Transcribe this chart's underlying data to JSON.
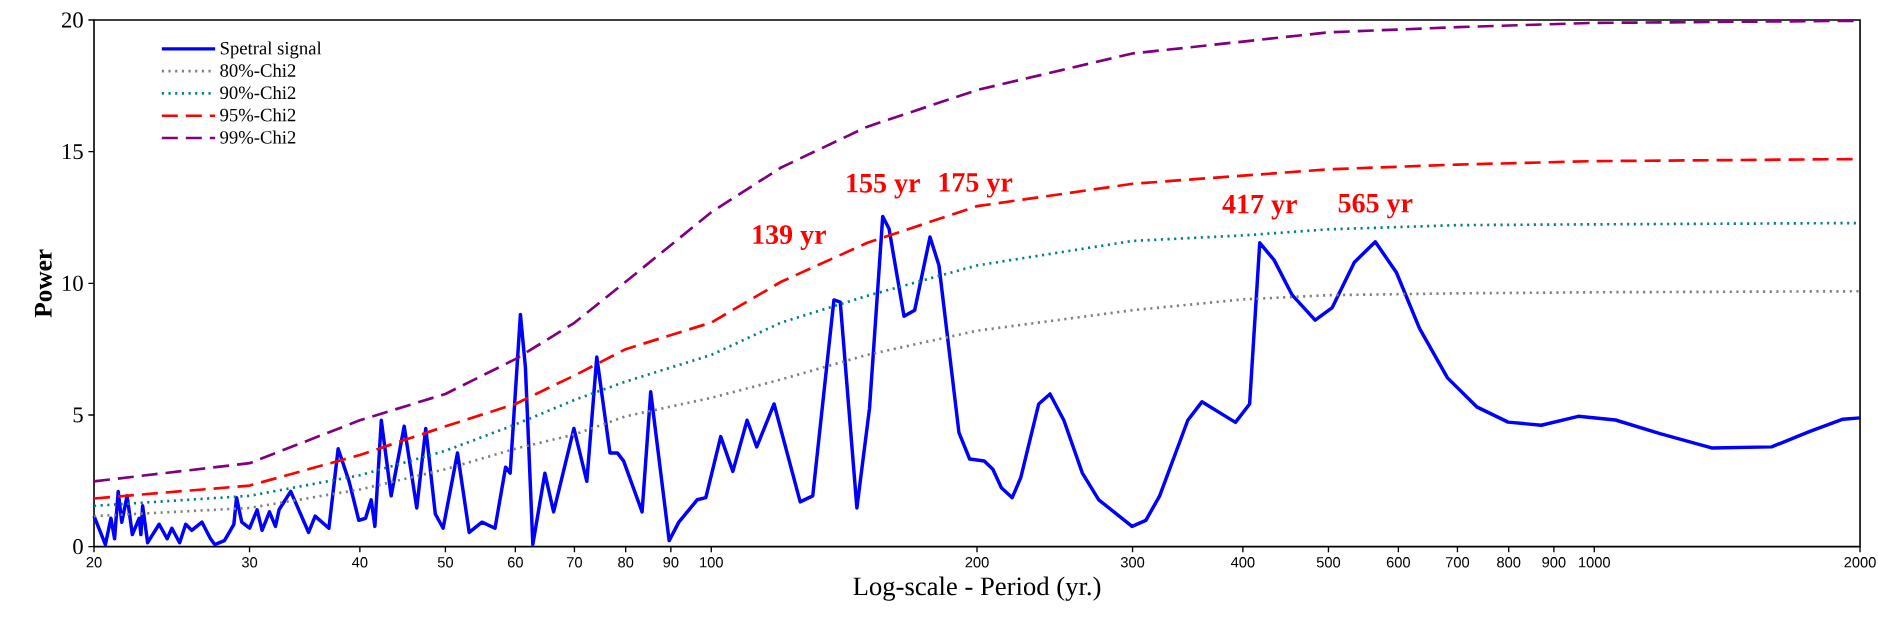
{
  "chart_data": {
    "type": "line",
    "xlabel": "Log-scale - Period (yr.)",
    "ylabel": "Power",
    "log": "x",
    "legend": "top left",
    "xlim": [
      20,
      2000
    ],
    "ylim": [
      0,
      20
    ],
    "xticks": [
      20,
      30,
      40,
      50,
      60,
      70,
      80,
      90,
      100,
      200,
      300,
      400,
      500,
      600,
      700,
      800,
      900,
      1000,
      2000
    ],
    "yticks": [
      0,
      5,
      10,
      15,
      20
    ],
    "series": [
      {
        "name": "Spetral signal",
        "color": "#0000ff",
        "line_style": "solid",
        "x": [
          20,
          20.3,
          20.6,
          20.9,
          21.1,
          21.3,
          21.5,
          21.8,
          22.1,
          22.5,
          22.6,
          22.7,
          23.0,
          23.3,
          23.7,
          24.2,
          24.5,
          25.0,
          25.4,
          25.8,
          26.5,
          27.1,
          27.4,
          28.1,
          28.8,
          29.0,
          29.4,
          30.0,
          30.6,
          31.0,
          31.6,
          32.1,
          32.4,
          33.4,
          35.0,
          35.6,
          36.9,
          37.8,
          38.9,
          39.9,
          40.6,
          41.2,
          41.6,
          42.3,
          43.4,
          44.9,
          46.4,
          47.5,
          48.7,
          49.7,
          51.6,
          53.2,
          55.0,
          56.9,
          58.5,
          59.2,
          60.8,
          61.6,
          62.8,
          64.8,
          66.3,
          69.9,
          72.3,
          74.2,
          76.8,
          78.3,
          79.6,
          83.5,
          85.4,
          89.6,
          91.9,
          96.4,
          98.6,
          102.5,
          105.8,
          109.8,
          112.6,
          117.8,
          126.1,
          130.3,
          137.7,
          140.0,
          146.2,
          151.1,
          156.4,
          159.0,
          165.3,
          170.0,
          176.9,
          181.1,
          190.8,
          196.2,
          203.8,
          208.4,
          213.1,
          219.2,
          224.2,
          234.9,
          241.9,
          250.8,
          263.2,
          274.7,
          299.6,
          310.6,
          322.0,
          346.5,
          359.5,
          392.4,
          407.1,
          418,
          434,
          455,
          483,
          505,
          535,
          565,
          597,
          634,
          682,
          736,
          799,
          871,
          959,
          1057,
          1187,
          1358,
          1588,
          1752,
          1913,
          2000
        ],
        "values": [
          1.16,
          0.62,
          0.08,
          1.08,
          0.3,
          2.1,
          0.93,
          1.93,
          0.46,
          1.08,
          0.46,
          1.55,
          0.15,
          0.46,
          0.85,
          0.3,
          0.7,
          0.15,
          0.85,
          0.62,
          0.93,
          0.3,
          0.08,
          0.23,
          0.85,
          1.86,
          0.93,
          0.7,
          1.4,
          0.62,
          1.32,
          0.77,
          1.4,
          2.1,
          0.54,
          1.16,
          0.7,
          3.72,
          2.48,
          1.0,
          1.08,
          1.78,
          0.77,
          4.8,
          1.93,
          4.57,
          1.47,
          4.49,
          1.24,
          0.7,
          3.56,
          0.54,
          0.93,
          0.7,
          3.02,
          2.79,
          8.82,
          6.81,
          0.08,
          2.79,
          1.32,
          4.49,
          2.48,
          7.2,
          3.56,
          3.56,
          3.25,
          1.32,
          5.88,
          0.23,
          0.93,
          1.78,
          1.86,
          4.18,
          2.86,
          4.8,
          3.79,
          5.42,
          1.7,
          1.93,
          9.37,
          9.29,
          1.47,
          5.26,
          12.54,
          12.07,
          8.75,
          8.98,
          11.76,
          10.68,
          4.33,
          3.33,
          3.25,
          2.94,
          2.24,
          1.86,
          2.63,
          5.42,
          5.8,
          4.8,
          2.79,
          1.78,
          0.77,
          1.0,
          1.93,
          4.8,
          5.5,
          4.72,
          5.42,
          11.54,
          10.88,
          9.55,
          8.6,
          9.08,
          10.8,
          11.58,
          10.41,
          8.29,
          6.41,
          5.31,
          4.73,
          4.61,
          4.95,
          4.81,
          4.29,
          3.75,
          3.79,
          4.37,
          4.84,
          4.89
        ]
      },
      {
        "name": "80%-Chi2",
        "color": "#808080",
        "line_style": "dotted",
        "x": [
          20,
          30,
          40,
          50,
          60,
          70,
          80,
          100,
          120,
          150,
          200,
          300,
          400,
          500,
          700,
          1000,
          2000
        ],
        "values": [
          1.16,
          1.47,
          2.17,
          2.94,
          3.72,
          4.26,
          4.95,
          5.65,
          6.35,
          7.28,
          8.2,
          8.98,
          9.39,
          9.55,
          9.62,
          9.66,
          9.7
        ]
      },
      {
        "name": "90%-Chi2",
        "color": "#008080",
        "line_style": "dotted",
        "x": [
          20,
          30,
          40,
          50,
          60,
          70,
          80,
          100,
          120,
          150,
          200,
          300,
          400,
          500,
          700,
          1000,
          2000
        ],
        "values": [
          1.55,
          1.93,
          2.71,
          3.64,
          4.64,
          5.57,
          6.27,
          7.28,
          8.51,
          9.52,
          10.68,
          11.61,
          11.82,
          12.05,
          12.21,
          12.24,
          12.29
        ]
      },
      {
        "name": "95%-Chi2",
        "color": "#ff0000",
        "line_style": "dashed",
        "x": [
          20,
          30,
          40,
          50,
          60,
          70,
          80,
          100,
          120,
          150,
          200,
          300,
          400,
          500,
          700,
          1000,
          2000
        ],
        "values": [
          1.83,
          2.32,
          3.48,
          4.57,
          5.42,
          6.5,
          7.5,
          8.51,
          10.06,
          11.53,
          12.93,
          13.78,
          14.09,
          14.33,
          14.51,
          14.64,
          14.72
        ]
      },
      {
        "name": "99%-Chi2",
        "color": "#800080",
        "line_style": "dashed",
        "x": [
          20,
          30,
          40,
          50,
          60,
          70,
          80,
          100,
          120,
          150,
          200,
          300,
          400,
          500,
          700,
          1000,
          2000
        ],
        "values": [
          2.48,
          3.17,
          4.8,
          5.8,
          7.12,
          8.5,
          10.06,
          12.7,
          14.4,
          15.94,
          17.34,
          18.73,
          19.18,
          19.53,
          19.73,
          19.89,
          19.97
        ]
      }
    ],
    "annotations": [
      {
        "text": "155 yr",
        "x": 156.4,
        "y": 12.54
      },
      {
        "text": "175 yr",
        "x": 176.9,
        "y": 11.76
      },
      {
        "text": "139 yr",
        "x": 137.7,
        "y": 9.37
      },
      {
        "text": "417 yr",
        "x": 418,
        "y": 11.54
      },
      {
        "text": "565 yr",
        "x": 565,
        "y": 11.58
      }
    ]
  }
}
